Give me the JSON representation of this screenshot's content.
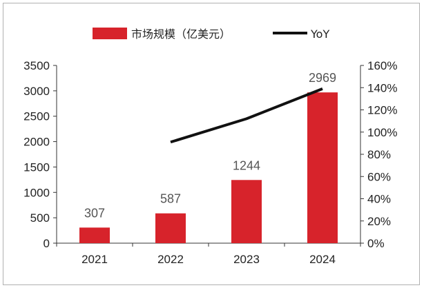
{
  "chart_data": {
    "type": "bar",
    "categories": [
      "2021",
      "2022",
      "2023",
      "2024"
    ],
    "series": [
      {
        "name": "市场规模（亿美元）",
        "kind": "bar",
        "axis": "left",
        "color": "#d7232b",
        "values": [
          307,
          587,
          1244,
          2969
        ],
        "data_labels": [
          "307",
          "587",
          "1244",
          "2969"
        ]
      },
      {
        "name": "YoY",
        "kind": "line",
        "axis": "right",
        "color": "#111111",
        "values": [
          null,
          91,
          112,
          139
        ]
      }
    ],
    "y_left": {
      "min": 0,
      "max": 3500,
      "step": 500
    },
    "y_right": {
      "min": 0,
      "max": 160,
      "step": 20,
      "suffix": "%"
    },
    "legend": {
      "position": "top"
    },
    "grid": false
  }
}
